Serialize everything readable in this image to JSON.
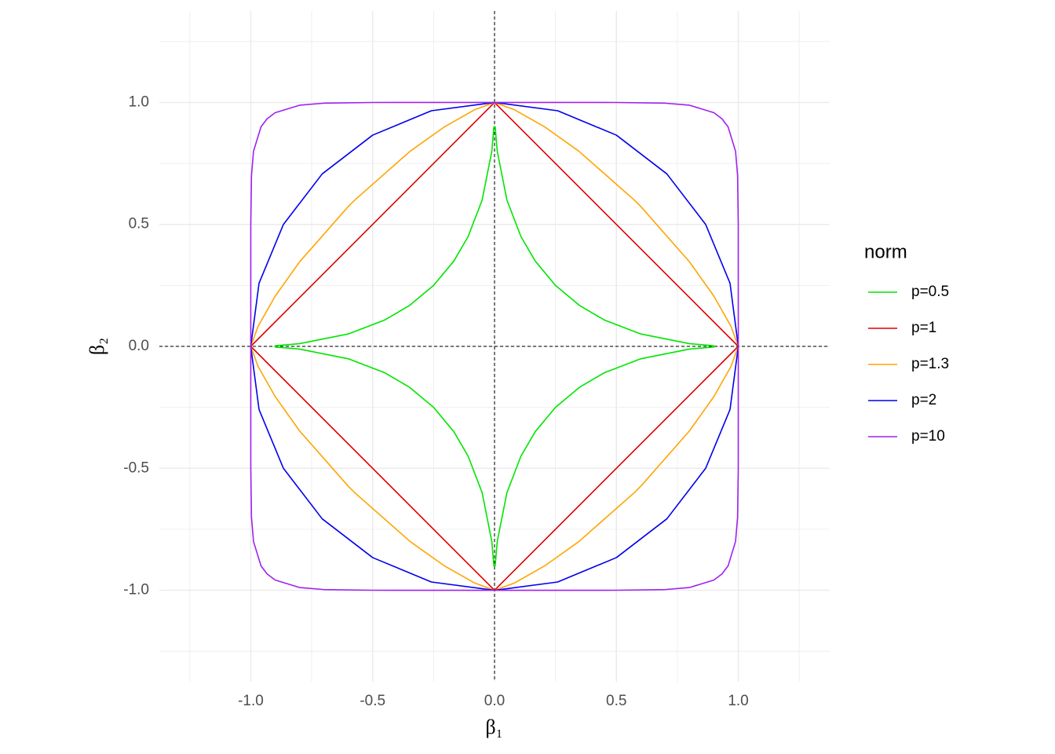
{
  "chart_data": {
    "type": "line",
    "x_label": "β₁",
    "y_label": "β₂",
    "legend_title": "norm",
    "legend": "right",
    "grid": true,
    "xlim": [
      -1.375,
      1.375
    ],
    "ylim": [
      -1.375,
      1.375
    ],
    "xticks": [
      {
        "value": -1,
        "label": "-1.0"
      },
      -0.5,
      {
        "value": 0,
        "label": "0.0"
      },
      0.5,
      {
        "value": 1,
        "label": "1.0"
      }
    ],
    "yticks": [
      {
        "value": -1,
        "label": "-1.0"
      },
      -0.5,
      {
        "value": 0,
        "label": "0.0"
      },
      0.5,
      {
        "value": 1,
        "label": "1.0"
      }
    ],
    "minor_xticks": [
      -1.25,
      -0.75,
      -0.25,
      0.25,
      0.75,
      1.25
    ],
    "minor_yticks": [
      -1.25,
      -0.75,
      -0.25,
      0.25,
      0.75,
      1.25
    ],
    "hline": 0,
    "vline": 0,
    "series": [
      {
        "name": "p=0.5",
        "color": "#00e600",
        "x": [
          0.9,
          0.8,
          0.6,
          0.45,
          0.35,
          0.25,
          0.1668,
          0.1084,
          0.0508,
          0.0111,
          0.0026,
          -0.0026,
          -0.0111,
          -0.0508,
          -0.1084,
          -0.1668,
          -0.25,
          -0.35,
          -0.45,
          -0.6,
          -0.8,
          -0.9,
          -0.9,
          -0.8,
          -0.6,
          -0.45,
          -0.35,
          -0.25,
          -0.1668,
          -0.1084,
          -0.0508,
          -0.0111,
          -0.0026,
          0.0026,
          0.0111,
          0.0508,
          0.1084,
          0.1668,
          0.25,
          0.35,
          0.45,
          0.6,
          0.8,
          0.9,
          0.9
        ],
        "values": [
          0.0026,
          0.0111,
          0.0508,
          0.1084,
          0.1668,
          0.25,
          0.35,
          0.45,
          0.6,
          0.8,
          0.9,
          0.9,
          0.8,
          0.6,
          0.45,
          0.35,
          0.25,
          0.1668,
          0.1084,
          0.0508,
          0.0111,
          0.0026,
          -0.0026,
          -0.0111,
          -0.0508,
          -0.1084,
          -0.1668,
          -0.25,
          -0.35,
          -0.45,
          -0.6,
          -0.8,
          -0.9,
          -0.9,
          -0.8,
          -0.6,
          -0.45,
          -0.35,
          -0.25,
          -0.1668,
          -0.1084,
          -0.0508,
          -0.0111,
          -0.0026,
          0.0026
        ]
      },
      {
        "name": "p=1",
        "color": "#e00000",
        "x": [
          1,
          0,
          -1,
          0,
          1
        ],
        "values": [
          0,
          1,
          0,
          -1,
          0
        ]
      },
      {
        "name": "p=1.3",
        "color": "#ffa500",
        "x": [
          1,
          0.97,
          0.9,
          0.8,
          0.6,
          0.5733,
          0.3462,
          0.2057,
          0.0822,
          0,
          -0.0822,
          -0.2057,
          -0.3462,
          -0.5733,
          -0.6,
          -0.8,
          -0.9,
          -0.97,
          -1,
          -0.97,
          -0.9,
          -0.8,
          -0.6,
          -0.5733,
          -0.3462,
          -0.2057,
          -0.0822,
          0,
          0.0822,
          0.2057,
          0.3462,
          0.5733,
          0.6,
          0.8,
          0.9,
          0.97,
          1
        ],
        "values": [
          0,
          0.0822,
          0.2057,
          0.3462,
          0.5733,
          0.6,
          0.8,
          0.9,
          0.97,
          1,
          0.97,
          0.9,
          0.8,
          0.6,
          0.5733,
          0.3462,
          0.2057,
          0.0822,
          0,
          -0.0822,
          -0.2057,
          -0.3462,
          -0.5733,
          -0.6,
          -0.8,
          -0.9,
          -0.97,
          -1,
          -0.97,
          -0.9,
          -0.8,
          -0.6,
          -0.5733,
          -0.3462,
          -0.2057,
          -0.0822,
          0
        ]
      },
      {
        "name": "p=2",
        "color": "#0000ee",
        "x": [
          1,
          0.966,
          0.866,
          0.707,
          0.5,
          0.259,
          0,
          -0.259,
          -0.5,
          -0.707,
          -0.866,
          -0.966,
          -1,
          -0.966,
          -0.866,
          -0.707,
          -0.5,
          -0.259,
          0,
          0.259,
          0.5,
          0.707,
          0.866,
          0.966,
          1
        ],
        "values": [
          0,
          0.259,
          0.5,
          0.707,
          0.866,
          0.966,
          1,
          0.966,
          0.866,
          0.707,
          0.5,
          0.259,
          0,
          -0.259,
          -0.5,
          -0.707,
          -0.866,
          -0.966,
          -1,
          -0.966,
          -0.866,
          -0.707,
          -0.5,
          -0.259,
          0
        ]
      },
      {
        "name": "p=10",
        "color": "#a020f0",
        "x": [
          1,
          0.9999,
          0.9971,
          0.9887,
          0.958,
          0.933,
          0.9,
          0.8,
          0.7,
          0.5,
          0,
          -0.5,
          -0.7,
          -0.8,
          -0.9,
          -0.933,
          -0.958,
          -0.9887,
          -0.9971,
          -0.9999,
          -1,
          -0.9999,
          -0.9971,
          -0.9887,
          -0.958,
          -0.933,
          -0.9,
          -0.8,
          -0.7,
          -0.5,
          0,
          0.5,
          0.7,
          0.8,
          0.9,
          0.933,
          0.958,
          0.9887,
          0.9971,
          0.9999,
          1
        ],
        "values": [
          0,
          0.5,
          0.7,
          0.8,
          0.9,
          0.933,
          0.958,
          0.9887,
          0.9971,
          0.9999,
          1,
          0.9999,
          0.9971,
          0.9887,
          0.958,
          0.933,
          0.9,
          0.8,
          0.7,
          0.5,
          0,
          -0.5,
          -0.7,
          -0.8,
          -0.9,
          -0.933,
          -0.958,
          -0.9887,
          -0.9971,
          -0.9999,
          -1,
          -0.9999,
          -0.9971,
          -0.9887,
          -0.958,
          -0.933,
          -0.9,
          -0.8,
          -0.7,
          -0.5,
          0
        ]
      }
    ]
  }
}
